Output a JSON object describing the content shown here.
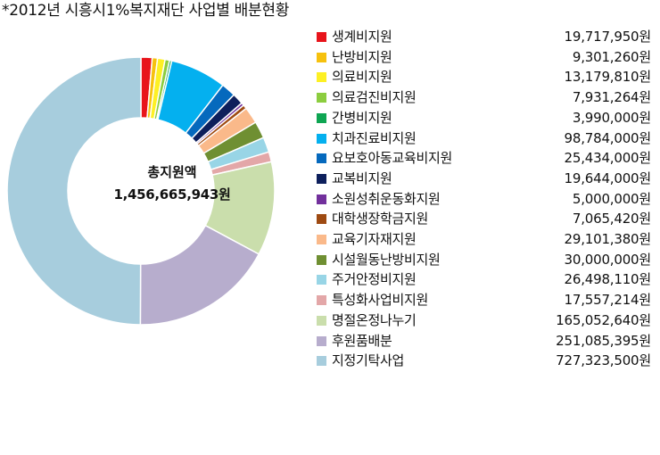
{
  "title": "*2012년 시흥시1%복지재단 사업별 배분현황",
  "center": {
    "label": "총지원액",
    "value": "1,456,665,943원"
  },
  "chart_data": {
    "type": "pie",
    "title": "*2012년 시흥시1%복지재단 사업별 배분현황",
    "variant": "donut",
    "legend_position": "right",
    "center_label": "총지원액",
    "total": 1456665943,
    "total_text": "1,456,665,943원",
    "slices": [
      {
        "name": "생계비지원",
        "value": 19717950,
        "value_text": "19,717,950원",
        "color": "#e8141b"
      },
      {
        "name": "난방비지원",
        "value": 9301260,
        "value_text": "9,301,260원",
        "color": "#f6c10e"
      },
      {
        "name": "의료비지원",
        "value": 13179810,
        "value_text": "13,179,810원",
        "color": "#fdf024"
      },
      {
        "name": "의료검진비지원",
        "value": 7931264,
        "value_text": "7,931,264원",
        "color": "#8ccd3f"
      },
      {
        "name": "간병비지원",
        "value": 3990000,
        "value_text": "3,990,000원",
        "color": "#0ea552"
      },
      {
        "name": "치과진료비지원",
        "value": 98784000,
        "value_text": "98,784,000원",
        "color": "#04b0ef"
      },
      {
        "name": "요보호아동교육비지원",
        "value": 25434000,
        "value_text": "25,434,000원",
        "color": "#0569bd"
      },
      {
        "name": "교복비지원",
        "value": 19644000,
        "value_text": "19,644,000원",
        "color": "#0d1f5c"
      },
      {
        "name": "소원성취운동화지원",
        "value": 5000000,
        "value_text": "5,000,000원",
        "color": "#72309c"
      },
      {
        "name": "대학생장학금지원",
        "value": 7065420,
        "value_text": "7,065,420원",
        "color": "#9e4a12"
      },
      {
        "name": "교육기자재지원",
        "value": 29101380,
        "value_text": "29,101,380원",
        "color": "#fab98a"
      },
      {
        "name": "시설월동난방비지원",
        "value": 30000000,
        "value_text": "30,000,000원",
        "color": "#6f8f32"
      },
      {
        "name": "주거안정비지원",
        "value": 26498110,
        "value_text": "26,498,110원",
        "color": "#98d5e6"
      },
      {
        "name": "특성화사업비지원",
        "value": 17557214,
        "value_text": "17,557,214원",
        "color": "#e3a7a8"
      },
      {
        "name": "명절온정나누기",
        "value": 165052640,
        "value_text": "165,052,640원",
        "color": "#cadeac"
      },
      {
        "name": "후원품배분",
        "value": 251085395,
        "value_text": "251,085,395원",
        "color": "#b7adcd"
      },
      {
        "name": "지정기탁사업",
        "value": 727323500,
        "value_text": "727,323,500원",
        "color": "#a7cddd"
      }
    ]
  }
}
